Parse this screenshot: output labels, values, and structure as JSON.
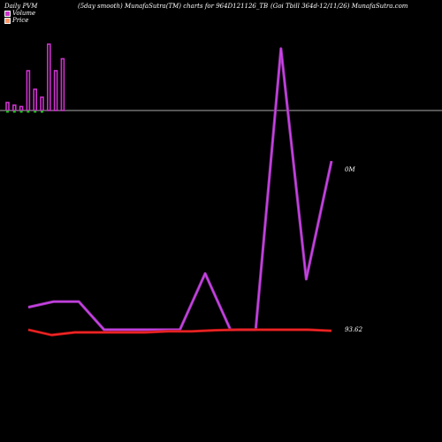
{
  "header": {
    "left": "Daily PVM",
    "center": "(5day smooth) MunafaSutra(TM) charts for 964D121126_TB",
    "right": "(Goi  Tbill 364d-12/11/26) MunafaSutra.com"
  },
  "colors": {
    "background": "#000000",
    "volume": "#cc33cc",
    "volume_line": "#cc44ee",
    "price": "#ff2a2a",
    "baseline": "#aaaaaa",
    "down_volume": "#22bb22"
  },
  "chart_data": {
    "type": "line",
    "legend": [
      {
        "name": "Volume",
        "color": "#cc33cc"
      },
      {
        "name": "Price",
        "color": "#ff9966"
      }
    ],
    "legend_position": "top-left",
    "grid": false,
    "volume_bars": [
      0.12,
      0.08,
      0.06,
      0.6,
      0.32,
      0.2,
      1.0,
      0.6,
      0.78
    ],
    "volume_down_flags": [
      true,
      true,
      true,
      true,
      true,
      true,
      false,
      false,
      false
    ],
    "volume_line": [
      0.08,
      0.1,
      0.1,
      0.0,
      0.0,
      0.0,
      0.0,
      0.2,
      0.0,
      0.0,
      1.0,
      0.18,
      0.6
    ],
    "price_line": [
      93.62,
      93.61,
      93.615,
      93.615,
      93.615,
      93.615,
      93.617,
      93.617,
      93.619,
      93.62,
      93.62,
      93.62,
      93.62,
      93.618
    ],
    "labels": {
      "volume_value": "0M",
      "price_value": "93.62"
    }
  }
}
